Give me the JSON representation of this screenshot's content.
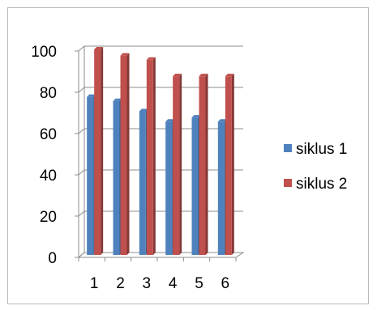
{
  "chart_data": {
    "type": "bar",
    "style": "3d-clustered-column",
    "categories": [
      "1",
      "2",
      "3",
      "4",
      "5",
      "6"
    ],
    "series": [
      {
        "name": "siklus 1",
        "color": "#4f81bd",
        "values": [
          77,
          75,
          70,
          65,
          67,
          65
        ]
      },
      {
        "name": "siklus 2",
        "color": "#c0504d",
        "values": [
          100,
          97,
          95,
          87,
          87,
          87
        ]
      }
    ],
    "title": "",
    "xlabel": "",
    "ylabel": "",
    "ylim": [
      0,
      100
    ],
    "yticks": [
      0,
      20,
      40,
      60,
      80,
      100
    ],
    "grid": true,
    "legend_position": "right"
  }
}
